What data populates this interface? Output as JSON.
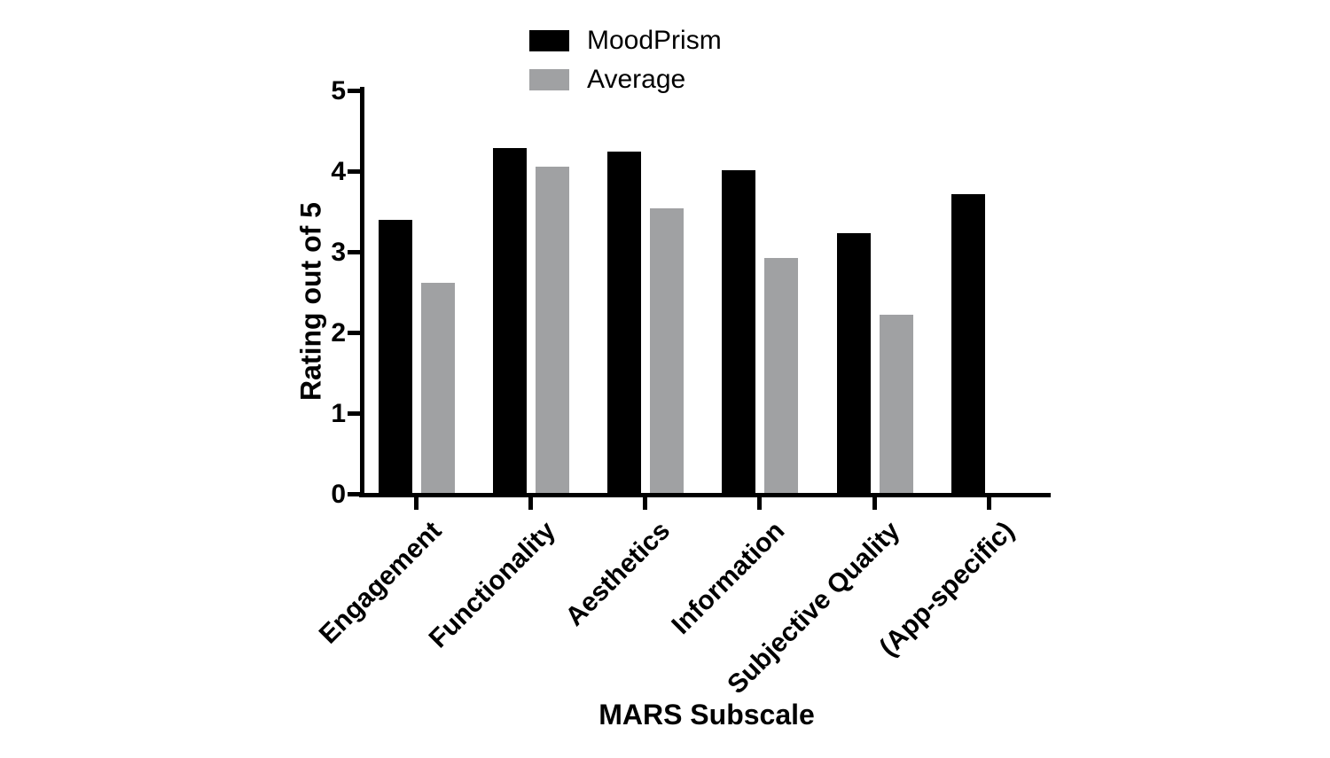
{
  "chart_data": {
    "type": "bar",
    "title": "",
    "categories": [
      "Engagement",
      "Functionality",
      "Aesthetics",
      "Information",
      "Subjective Quality",
      "(App-specific)"
    ],
    "series": [
      {
        "name": "MoodPrism",
        "color": "#000000",
        "values": [
          3.38,
          4.27,
          4.23,
          4.0,
          3.22,
          3.7
        ]
      },
      {
        "name": "Average",
        "color": "#a0a1a3",
        "values": [
          2.61,
          4.04,
          3.53,
          2.91,
          2.21,
          null
        ]
      }
    ],
    "xlabel": "MARS Subscale",
    "ylabel": "Rating out of 5",
    "ylim": [
      0,
      5
    ],
    "yticks": [
      0,
      1,
      2,
      3,
      4,
      5
    ],
    "grid": false,
    "legend_position": "top-center",
    "background": "#ffffff"
  }
}
